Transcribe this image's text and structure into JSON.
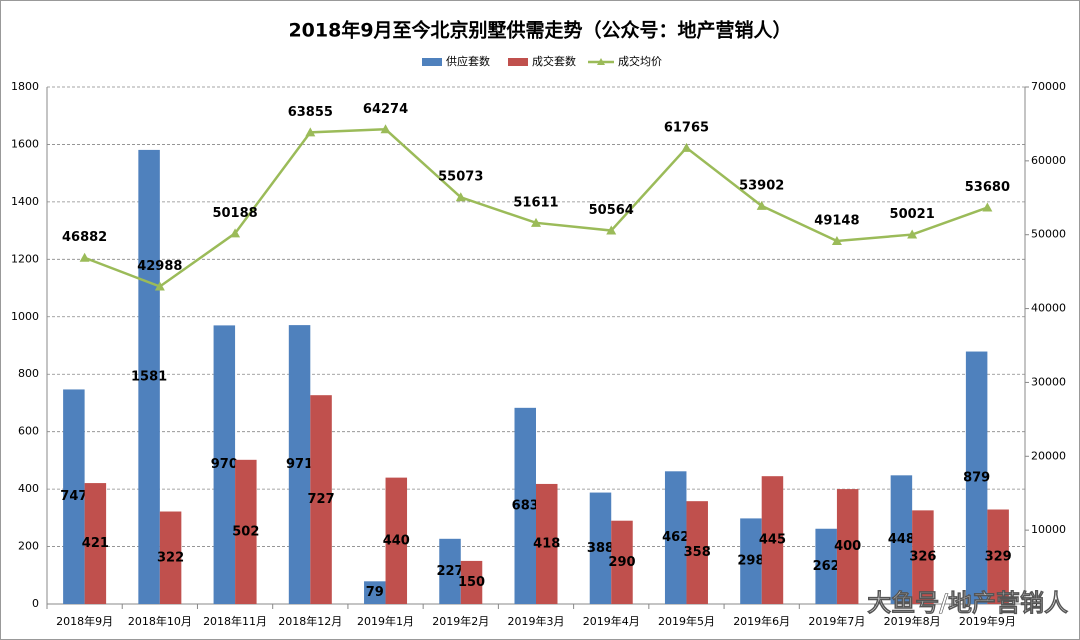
{
  "chart_data": {
    "type": "bar-line",
    "title": "2018年9月至今北京别墅供需走势（公众号：地产营销人）",
    "categories": [
      "2018年9月",
      "2018年10月",
      "2018年11月",
      "2018年12月",
      "2019年1月",
      "2019年2月",
      "2019年3月",
      "2019年4月",
      "2019年5月",
      "2019年6月",
      "2019年7月",
      "2019年8月",
      "2019年9月"
    ],
    "series": [
      {
        "name": "供应套数",
        "color": "#4f81bd",
        "type": "bar",
        "values": [
          747,
          1581,
          970,
          971,
          79,
          227,
          683,
          388,
          462,
          298,
          262,
          448,
          879
        ]
      },
      {
        "name": "成交套数",
        "color": "#c0504d",
        "type": "bar",
        "values": [
          421,
          322,
          502,
          727,
          440,
          150,
          418,
          290,
          358,
          445,
          400,
          326,
          329
        ]
      },
      {
        "name": "成交均价",
        "color": "#9bbb59",
        "type": "line",
        "axis": "y2",
        "values": [
          46882,
          42988,
          50188,
          63855,
          64274,
          55073,
          51611,
          50564,
          61765,
          53902,
          49148,
          50021,
          53680
        ]
      }
    ],
    "ylim": [
      0,
      1800
    ],
    "yticks": [
      0,
      200,
      400,
      600,
      800,
      1000,
      1200,
      1400,
      1600,
      1800
    ],
    "y2lim": [
      0,
      70000
    ],
    "y2ticks": [
      0,
      10000,
      20000,
      30000,
      40000,
      50000,
      60000,
      70000
    ],
    "grid": true,
    "legend": "top",
    "watermark": "大鱼号/地产营销人"
  }
}
